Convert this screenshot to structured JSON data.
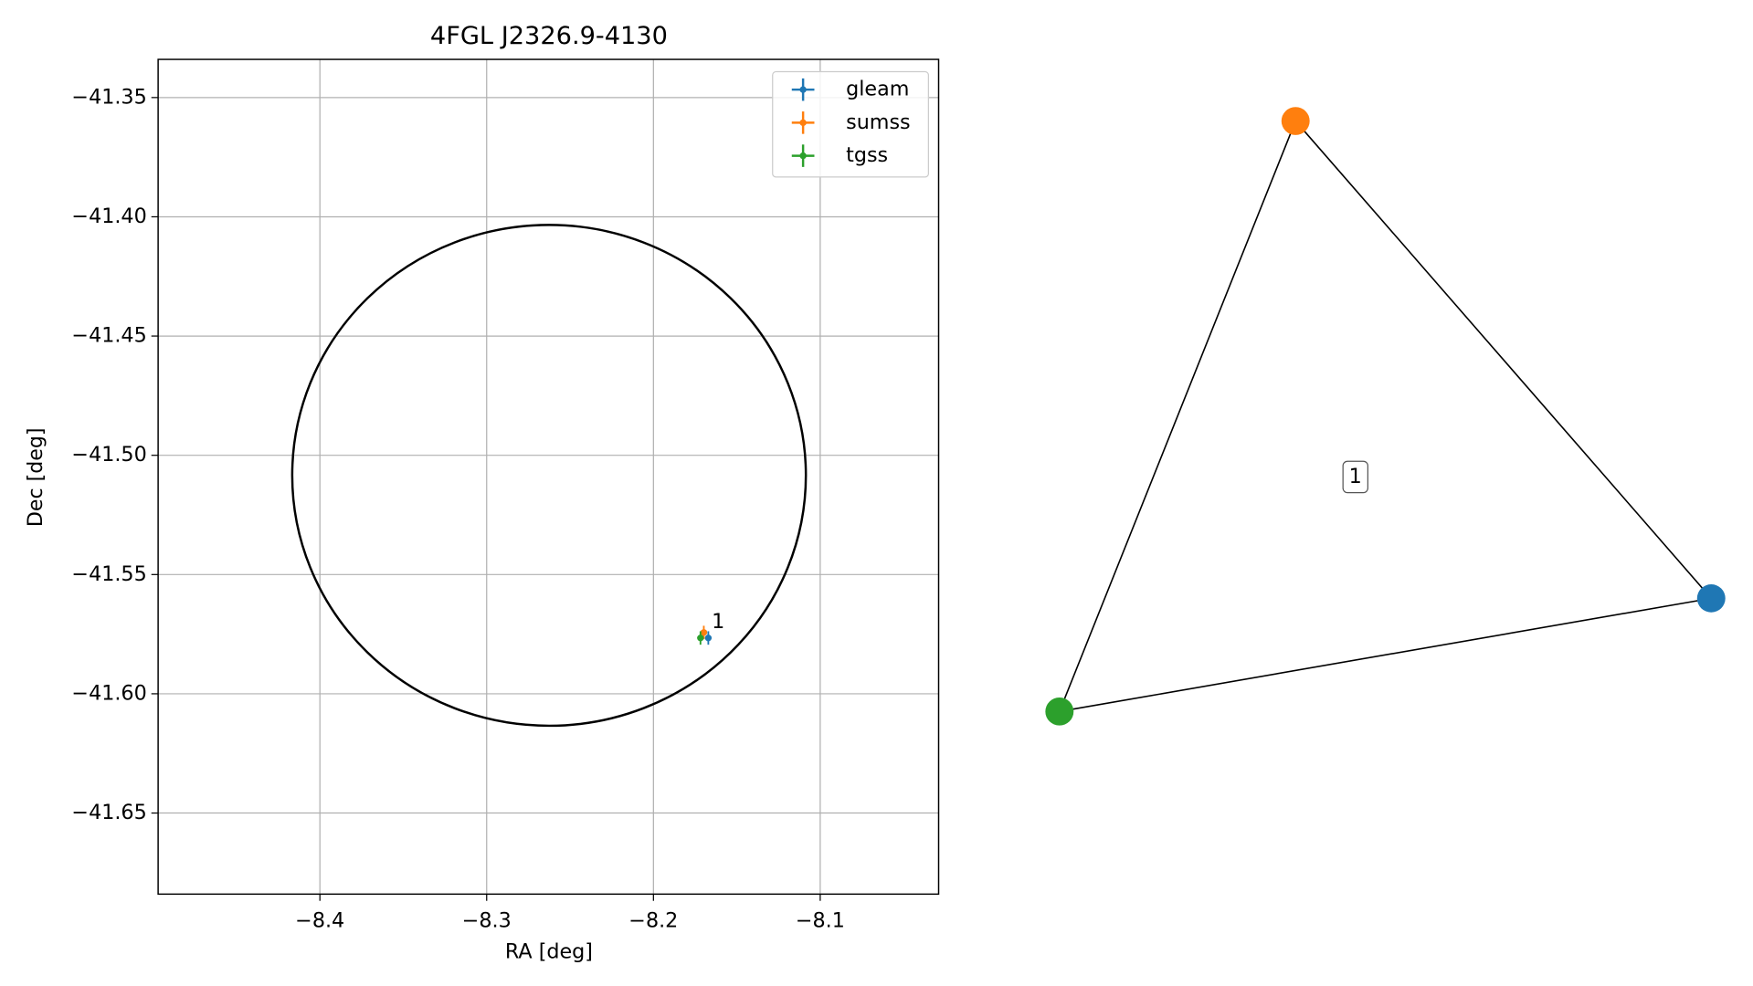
{
  "chart_data": [
    {
      "type": "scatter",
      "title": "4FGL J2326.9-4130",
      "xlabel": "RA [deg]",
      "ylabel": "Dec [deg]",
      "xlim": [
        -8.497,
        -8.029
      ],
      "ylim": [
        -41.684,
        -41.334
      ],
      "xticks": [
        {
          "value": -8.4,
          "label": "−8.4"
        },
        {
          "value": -8.3,
          "label": "−8.3"
        },
        {
          "value": -8.2,
          "label": "−8.2"
        },
        {
          "value": -8.1,
          "label": "−8.1"
        }
      ],
      "yticks": [
        {
          "value": -41.35,
          "label": "−41.35"
        },
        {
          "value": -41.4,
          "label": "−41.40"
        },
        {
          "value": -41.45,
          "label": "−41.45"
        },
        {
          "value": -41.5,
          "label": "−41.50"
        },
        {
          "value": -41.55,
          "label": "−41.55"
        },
        {
          "value": -41.6,
          "label": "−41.60"
        },
        {
          "value": -41.65,
          "label": "−41.65"
        }
      ],
      "grid": true,
      "legend": "upper right",
      "series": [
        {
          "name": "gleam",
          "color": "#1f77b4",
          "x": [
            -8.1671
          ],
          "y": [
            -41.5766
          ]
        },
        {
          "name": "sumss",
          "color": "#ff7f0e",
          "x": [
            -8.1698
          ],
          "y": [
            -41.5743
          ]
        },
        {
          "name": "tgss",
          "color": "#2ca02c",
          "x": [
            -8.1718
          ],
          "y": [
            -41.5766
          ]
        }
      ],
      "circle": {
        "center": [
          -8.2626,
          -41.5084
        ],
        "radius_x": 0.154,
        "radius_y": 0.105,
        "color": "#000000"
      },
      "annotations": [
        "1"
      ]
    },
    {
      "type": "network",
      "nodes": [
        {
          "color": "#1f77b4"
        },
        {
          "color": "#ff7f0e"
        },
        {
          "color": "#2ca02c"
        }
      ],
      "edges": [
        [
          0,
          1
        ],
        [
          1,
          2
        ],
        [
          2,
          0
        ]
      ],
      "clusters": [
        "1"
      ]
    }
  ]
}
